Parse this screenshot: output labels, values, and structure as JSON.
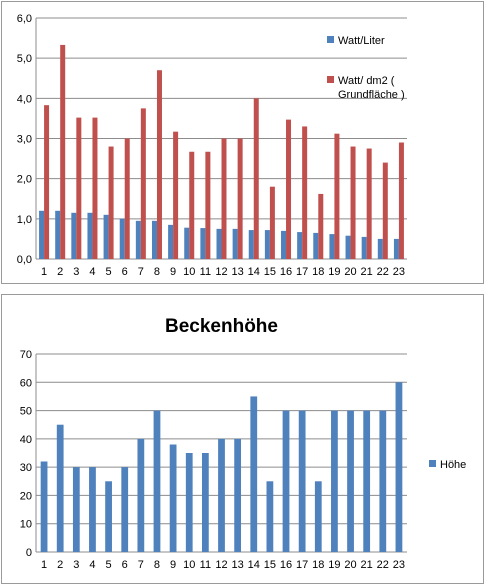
{
  "chart_data": [
    {
      "type": "bar",
      "title": "",
      "xlabel": "",
      "ylabel": "",
      "categories": [
        "1",
        "2",
        "3",
        "4",
        "5",
        "6",
        "7",
        "8",
        "9",
        "10",
        "11",
        "12",
        "13",
        "14",
        "15",
        "16",
        "17",
        "18",
        "19",
        "20",
        "21",
        "22",
        "23"
      ],
      "y_tick_labels": [
        "0,0",
        "1,0",
        "2,0",
        "3,0",
        "4,0",
        "5,0",
        "6,0"
      ],
      "ylim": [
        0,
        6
      ],
      "grid": true,
      "legend_position": "right",
      "series": [
        {
          "name": "Watt/Liter",
          "color": "#4f81bd",
          "values": [
            1.2,
            1.2,
            1.15,
            1.15,
            1.1,
            1.0,
            0.95,
            0.95,
            0.85,
            0.78,
            0.77,
            0.75,
            0.75,
            0.72,
            0.72,
            0.7,
            0.67,
            0.65,
            0.62,
            0.58,
            0.55,
            0.5,
            0.5
          ]
        },
        {
          "name": "Watt/ dm2      ( Grundfläche )",
          "name_lines": [
            "Watt/ dm2      (",
            "Grundfläche )"
          ],
          "color": "#c0504d",
          "values": [
            3.83,
            5.33,
            3.52,
            3.52,
            2.8,
            3.0,
            3.75,
            4.7,
            3.17,
            2.67,
            2.67,
            3.0,
            3.0,
            4.0,
            1.8,
            3.47,
            3.3,
            1.62,
            3.12,
            2.8,
            2.75,
            2.4,
            2.9
          ]
        }
      ]
    },
    {
      "type": "bar",
      "title": "Beckenhöhe",
      "xlabel": "",
      "ylabel": "",
      "categories": [
        "1",
        "2",
        "3",
        "4",
        "5",
        "6",
        "7",
        "8",
        "9",
        "10",
        "11",
        "12",
        "13",
        "14",
        "15",
        "16",
        "17",
        "18",
        "19",
        "20",
        "21",
        "22",
        "23"
      ],
      "y_tick_labels": [
        "0",
        "10",
        "20",
        "30",
        "40",
        "50",
        "60",
        "70"
      ],
      "ylim": [
        0,
        70
      ],
      "grid": true,
      "legend_position": "right",
      "series": [
        {
          "name": "Höhe",
          "color": "#4f81bd",
          "values": [
            32,
            45,
            30,
            30,
            25,
            30,
            40,
            50,
            38,
            35,
            35,
            40,
            40,
            55,
            25,
            50,
            50,
            25,
            50,
            50,
            50,
            50,
            60
          ]
        }
      ]
    }
  ]
}
